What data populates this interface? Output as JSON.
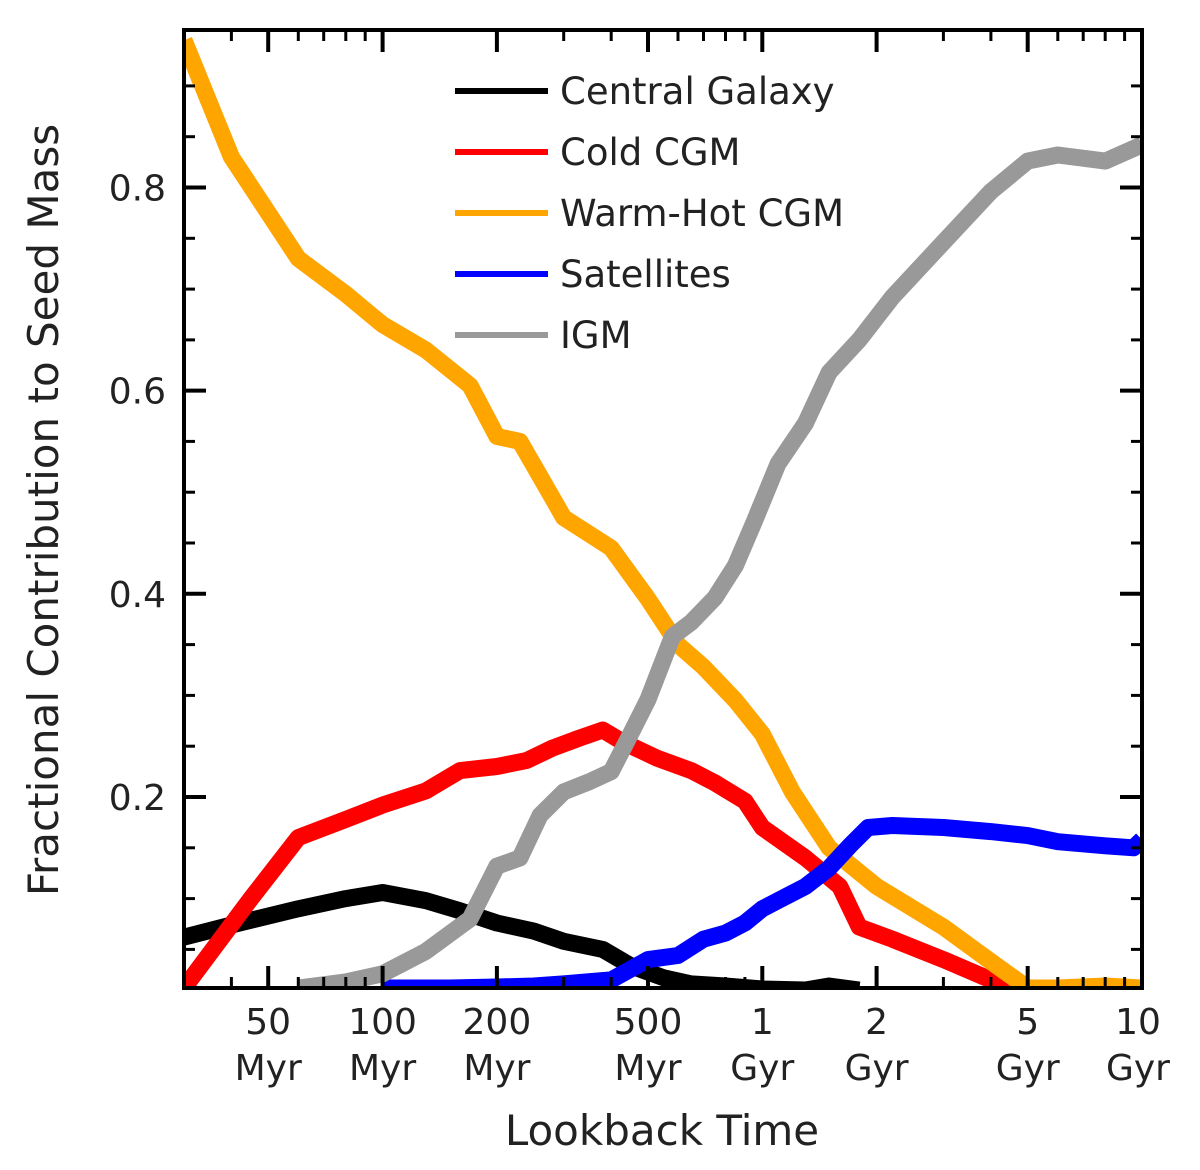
{
  "chart_data": {
    "type": "line",
    "xlabel": "Lookback Time",
    "ylabel": "Fractional Contribution to Seed Mass",
    "xscale": "log",
    "xunit": "Myr",
    "xlim": [
      30,
      10000
    ],
    "ylim": [
      0.012,
      0.955
    ],
    "grid": false,
    "legend_position": "top-center",
    "x_ticks": [
      {
        "value": 50,
        "line1": "50",
        "line2": "Myr"
      },
      {
        "value": 100,
        "line1": "100",
        "line2": "Myr"
      },
      {
        "value": 200,
        "line1": "200",
        "line2": "Myr"
      },
      {
        "value": 500,
        "line1": "500",
        "line2": "Myr"
      },
      {
        "value": 1000,
        "line1": "1",
        "line2": "Gyr"
      },
      {
        "value": 2000,
        "line1": "2",
        "line2": "Gyr"
      },
      {
        "value": 5000,
        "line1": "5",
        "line2": "Gyr"
      },
      {
        "value": 10000,
        "line1": "10",
        "line2": "Gyr"
      }
    ],
    "y_ticks": [
      {
        "value": 0.2,
        "label": "0.2"
      },
      {
        "value": 0.4,
        "label": "0.4"
      },
      {
        "value": 0.6,
        "label": "0.6"
      },
      {
        "value": 0.8,
        "label": "0.8"
      }
    ],
    "series": [
      {
        "name": "Central Galaxy",
        "color": "#000000",
        "points": [
          [
            30,
            0.062
          ],
          [
            40,
            0.074
          ],
          [
            60,
            0.09
          ],
          [
            80,
            0.1
          ],
          [
            100,
            0.106
          ],
          [
            130,
            0.098
          ],
          [
            160,
            0.088
          ],
          [
            200,
            0.076
          ],
          [
            250,
            0.068
          ],
          [
            300,
            0.058
          ],
          [
            380,
            0.05
          ],
          [
            450,
            0.034
          ],
          [
            550,
            0.022
          ],
          [
            650,
            0.016
          ],
          [
            800,
            0.014
          ],
          [
            1000,
            0.011
          ],
          [
            1300,
            0.01
          ],
          [
            1500,
            0.014
          ],
          [
            1800,
            0.01
          ]
        ]
      },
      {
        "name": "Cold CGM",
        "color": "#ff0000",
        "points": [
          [
            30,
            0.012
          ],
          [
            45,
            0.1
          ],
          [
            60,
            0.16
          ],
          [
            80,
            0.178
          ],
          [
            100,
            0.192
          ],
          [
            130,
            0.206
          ],
          [
            160,
            0.226
          ],
          [
            200,
            0.23
          ],
          [
            240,
            0.236
          ],
          [
            280,
            0.248
          ],
          [
            330,
            0.258
          ],
          [
            380,
            0.266
          ],
          [
            430,
            0.254
          ],
          [
            530,
            0.238
          ],
          [
            650,
            0.226
          ],
          [
            750,
            0.214
          ],
          [
            900,
            0.196
          ],
          [
            1000,
            0.17
          ],
          [
            1300,
            0.14
          ],
          [
            1600,
            0.112
          ],
          [
            1800,
            0.072
          ],
          [
            2200,
            0.06
          ],
          [
            3000,
            0.04
          ],
          [
            4000,
            0.02
          ],
          [
            4500,
            0.012
          ]
        ]
      },
      {
        "name": "Warm-Hot CGM",
        "color": "#ffa500",
        "points": [
          [
            30,
            0.945
          ],
          [
            40,
            0.83
          ],
          [
            60,
            0.73
          ],
          [
            80,
            0.695
          ],
          [
            100,
            0.665
          ],
          [
            130,
            0.64
          ],
          [
            170,
            0.605
          ],
          [
            200,
            0.555
          ],
          [
            230,
            0.55
          ],
          [
            270,
            0.505
          ],
          [
            300,
            0.475
          ],
          [
            400,
            0.445
          ],
          [
            500,
            0.395
          ],
          [
            600,
            0.35
          ],
          [
            700,
            0.328
          ],
          [
            850,
            0.295
          ],
          [
            1000,
            0.262
          ],
          [
            1200,
            0.205
          ],
          [
            1500,
            0.15
          ],
          [
            2000,
            0.112
          ],
          [
            3000,
            0.072
          ],
          [
            4000,
            0.038
          ],
          [
            5000,
            0.012
          ],
          [
            6000,
            0.012
          ],
          [
            8000,
            0.014
          ],
          [
            10000,
            0.012
          ]
        ]
      },
      {
        "name": "Satellites",
        "color": "#0000ff",
        "points": [
          [
            100,
            0.012
          ],
          [
            150,
            0.012
          ],
          [
            200,
            0.013
          ],
          [
            250,
            0.014
          ],
          [
            300,
            0.016
          ],
          [
            400,
            0.02
          ],
          [
            500,
            0.04
          ],
          [
            600,
            0.044
          ],
          [
            700,
            0.06
          ],
          [
            800,
            0.066
          ],
          [
            900,
            0.076
          ],
          [
            1000,
            0.09
          ],
          [
            1100,
            0.098
          ],
          [
            1300,
            0.112
          ],
          [
            1500,
            0.13
          ],
          [
            1700,
            0.152
          ],
          [
            1900,
            0.17
          ],
          [
            2200,
            0.172
          ],
          [
            3000,
            0.17
          ],
          [
            4000,
            0.166
          ],
          [
            5000,
            0.162
          ],
          [
            6000,
            0.156
          ],
          [
            8000,
            0.152
          ],
          [
            9500,
            0.15
          ],
          [
            10000,
            0.158
          ]
        ]
      },
      {
        "name": "IGM",
        "color": "#999999",
        "points": [
          [
            60,
            0.012
          ],
          [
            80,
            0.018
          ],
          [
            100,
            0.026
          ],
          [
            130,
            0.048
          ],
          [
            170,
            0.08
          ],
          [
            200,
            0.132
          ],
          [
            230,
            0.14
          ],
          [
            260,
            0.182
          ],
          [
            300,
            0.205
          ],
          [
            350,
            0.215
          ],
          [
            400,
            0.225
          ],
          [
            450,
            0.262
          ],
          [
            500,
            0.296
          ],
          [
            580,
            0.358
          ],
          [
            650,
            0.372
          ],
          [
            750,
            0.396
          ],
          [
            850,
            0.428
          ],
          [
            950,
            0.47
          ],
          [
            1100,
            0.528
          ],
          [
            1300,
            0.568
          ],
          [
            1500,
            0.618
          ],
          [
            1800,
            0.65
          ],
          [
            2200,
            0.692
          ],
          [
            3000,
            0.746
          ],
          [
            4000,
            0.796
          ],
          [
            5000,
            0.826
          ],
          [
            6000,
            0.832
          ],
          [
            8000,
            0.826
          ],
          [
            10000,
            0.842
          ]
        ]
      }
    ]
  }
}
